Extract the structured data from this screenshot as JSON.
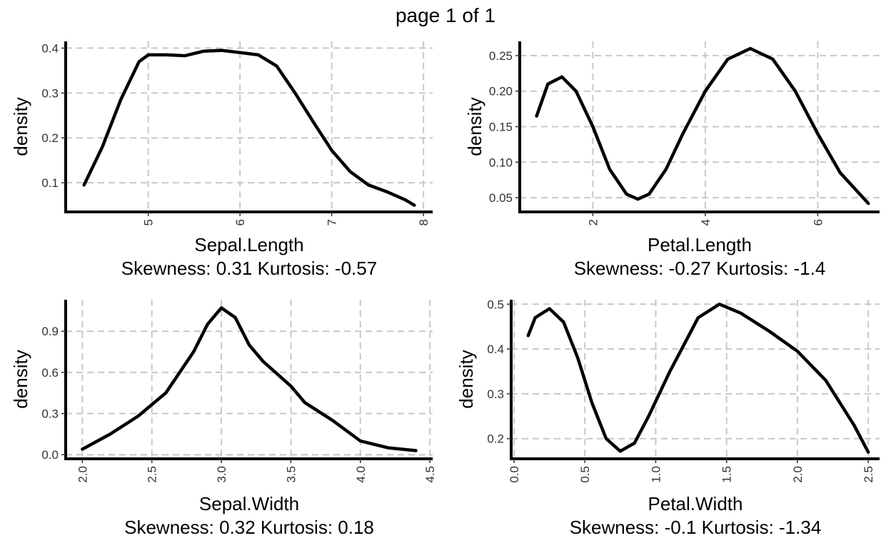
{
  "page": {
    "title": "page 1 of 1"
  },
  "chart_data": [
    {
      "type": "line",
      "xlabel": "Sepal.Length",
      "subtitle": "Skewness: 0.31 Kurtosis: -0.57",
      "ylabel": "density",
      "xlim": [
        4.1,
        8.1
      ],
      "ylim": [
        0.035,
        0.415
      ],
      "xticks": [
        "5",
        "6",
        "7",
        "8"
      ],
      "xtick_values": [
        5,
        6,
        7,
        8
      ],
      "yticks": [
        "0.1",
        "0.2",
        "0.3",
        "0.4"
      ],
      "ytick_values": [
        0.1,
        0.2,
        0.3,
        0.4
      ],
      "xticks_rotated": true,
      "grid": true,
      "series": [
        {
          "x": [
            4.3,
            4.5,
            4.7,
            4.9,
            5.0,
            5.2,
            5.4,
            5.6,
            5.8,
            6.0,
            6.2,
            6.4,
            6.6,
            6.8,
            7.0,
            7.2,
            7.4,
            7.6,
            7.8,
            7.9
          ],
          "y": [
            0.095,
            0.18,
            0.285,
            0.37,
            0.385,
            0.385,
            0.383,
            0.393,
            0.395,
            0.39,
            0.385,
            0.36,
            0.3,
            0.235,
            0.172,
            0.125,
            0.095,
            0.08,
            0.062,
            0.05
          ]
        }
      ]
    },
    {
      "type": "line",
      "xlabel": "Petal.Length",
      "subtitle": "Skewness: -0.27 Kurtosis: -1.4",
      "ylabel": "density",
      "xlim": [
        0.7,
        7.1
      ],
      "ylim": [
        0.03,
        0.27
      ],
      "xticks": [
        "2",
        "4",
        "6"
      ],
      "xtick_values": [
        2,
        4,
        6
      ],
      "yticks": [
        "0.05",
        "0.10",
        "0.15",
        "0.20",
        "0.25"
      ],
      "ytick_values": [
        0.05,
        0.1,
        0.15,
        0.2,
        0.25
      ],
      "xticks_rotated": true,
      "grid": true,
      "series": [
        {
          "x": [
            1.0,
            1.2,
            1.45,
            1.7,
            2.0,
            2.3,
            2.6,
            2.8,
            3.0,
            3.3,
            3.6,
            4.0,
            4.4,
            4.8,
            5.2,
            5.6,
            6.0,
            6.4,
            6.9
          ],
          "y": [
            0.165,
            0.21,
            0.22,
            0.2,
            0.15,
            0.09,
            0.055,
            0.048,
            0.055,
            0.09,
            0.14,
            0.2,
            0.245,
            0.26,
            0.245,
            0.2,
            0.14,
            0.085,
            0.042
          ]
        }
      ]
    },
    {
      "type": "line",
      "xlabel": "Sepal.Width",
      "subtitle": "Skewness: 0.32 Kurtosis: 0.18",
      "ylabel": "density",
      "xlim": [
        1.88,
        4.52
      ],
      "ylim": [
        -0.03,
        1.13
      ],
      "xticks": [
        "2.0",
        "2.5",
        "3.0",
        "3.5",
        "4.0",
        "4.5"
      ],
      "xtick_values": [
        2.0,
        2.5,
        3.0,
        3.5,
        4.0,
        4.5
      ],
      "yticks": [
        "0.0",
        "0.3",
        "0.6",
        "0.9"
      ],
      "ytick_values": [
        0.0,
        0.3,
        0.6,
        0.9
      ],
      "xticks_rotated": true,
      "grid": true,
      "series": [
        {
          "x": [
            2.0,
            2.2,
            2.4,
            2.6,
            2.8,
            2.9,
            3.0,
            3.1,
            3.2,
            3.3,
            3.5,
            3.6,
            3.8,
            4.0,
            4.2,
            4.4
          ],
          "y": [
            0.04,
            0.15,
            0.28,
            0.45,
            0.75,
            0.95,
            1.07,
            1.0,
            0.8,
            0.68,
            0.5,
            0.38,
            0.25,
            0.1,
            0.05,
            0.03
          ]
        }
      ]
    },
    {
      "type": "line",
      "xlabel": "Petal.Width",
      "subtitle": "Skewness: -0.1 Kurtosis: -1.34",
      "ylabel": "density",
      "xlim": [
        -0.02,
        2.58
      ],
      "ylim": [
        0.155,
        0.51
      ],
      "xticks": [
        "0.0",
        "0.5",
        "1.0",
        "1.5",
        "2.0",
        "2.5"
      ],
      "xtick_values": [
        0.0,
        0.5,
        1.0,
        1.5,
        2.0,
        2.5
      ],
      "yticks": [
        "0.2",
        "0.3",
        "0.4",
        "0.5"
      ],
      "ytick_values": [
        0.2,
        0.3,
        0.4,
        0.5
      ],
      "xticks_rotated": true,
      "grid": true,
      "series": [
        {
          "x": [
            0.1,
            0.15,
            0.25,
            0.35,
            0.45,
            0.55,
            0.65,
            0.75,
            0.85,
            0.95,
            1.1,
            1.3,
            1.45,
            1.6,
            1.8,
            2.0,
            2.2,
            2.4,
            2.5
          ],
          "y": [
            0.43,
            0.47,
            0.49,
            0.46,
            0.38,
            0.28,
            0.2,
            0.172,
            0.19,
            0.25,
            0.35,
            0.47,
            0.5,
            0.48,
            0.44,
            0.395,
            0.33,
            0.23,
            0.17
          ]
        }
      ]
    }
  ]
}
